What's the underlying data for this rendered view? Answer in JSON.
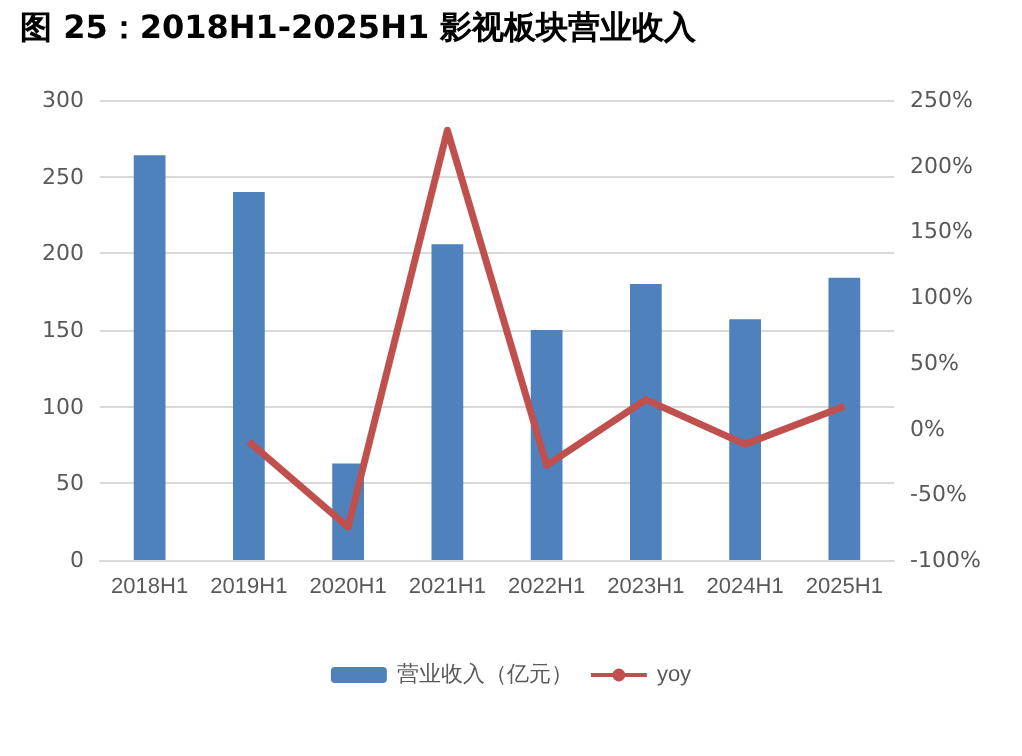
{
  "chart_data": {
    "type": "bar",
    "title": "图 25：2018H1-2025H1 影视板块营业收入",
    "categories": [
      "2018H1",
      "2019H1",
      "2020H1",
      "2021H1",
      "2022H1",
      "2023H1",
      "2024H1",
      "2025H1"
    ],
    "series": [
      {
        "name": "营业收入（亿元）",
        "color": "#4f81bd",
        "values": [
          264,
          240,
          63,
          206,
          150,
          180,
          157,
          184
        ]
      },
      {
        "name": "yoy",
        "type": "line",
        "axis": "y2",
        "color": "#c0504d",
        "values": [
          null,
          -10,
          -75,
          227,
          -28,
          22,
          -12,
          17
        ]
      }
    ],
    "ylim": [
      0,
      300
    ],
    "yticks": [
      0,
      50,
      100,
      150,
      200,
      250,
      300
    ],
    "y2lim": [
      -100,
      250
    ],
    "y2ticks": [
      {
        "value": -100,
        "label": "-100%"
      },
      {
        "value": -50,
        "label": "-50%"
      },
      {
        "value": 0,
        "label": "0%"
      },
      {
        "value": 50,
        "label": "50%"
      },
      {
        "value": 100,
        "label": "100%"
      },
      {
        "value": 150,
        "label": "150%"
      },
      {
        "value": 200,
        "label": "200%"
      },
      {
        "value": 250,
        "label": "250%"
      }
    ],
    "grid": "y",
    "legend": "bottom",
    "marker": "none",
    "line_style": "solid"
  }
}
